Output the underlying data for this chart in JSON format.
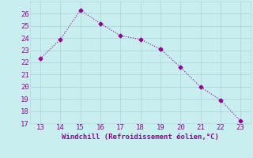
{
  "x": [
    13,
    14,
    15,
    16,
    17,
    18,
    19,
    20,
    21,
    22,
    23
  ],
  "y": [
    22.3,
    23.9,
    26.3,
    25.2,
    24.2,
    23.9,
    23.1,
    21.6,
    20.0,
    18.9,
    17.2
  ],
  "line_color": "#990099",
  "marker": "D",
  "marker_size": 2.5,
  "background_color": "#c8eef0",
  "grid_color": "#b0d8dc",
  "xlabel": "Windchill (Refroidissement éolien,°C)",
  "xlabel_color": "#990099",
  "tick_color": "#990099",
  "xlim": [
    12.5,
    23.5
  ],
  "ylim": [
    17,
    27
  ],
  "xticks": [
    13,
    14,
    15,
    16,
    17,
    18,
    19,
    20,
    21,
    22,
    23
  ],
  "yticks": [
    17,
    18,
    19,
    20,
    21,
    22,
    23,
    24,
    25,
    26
  ],
  "label_fontsize": 6.5,
  "tick_fontsize": 6.5
}
